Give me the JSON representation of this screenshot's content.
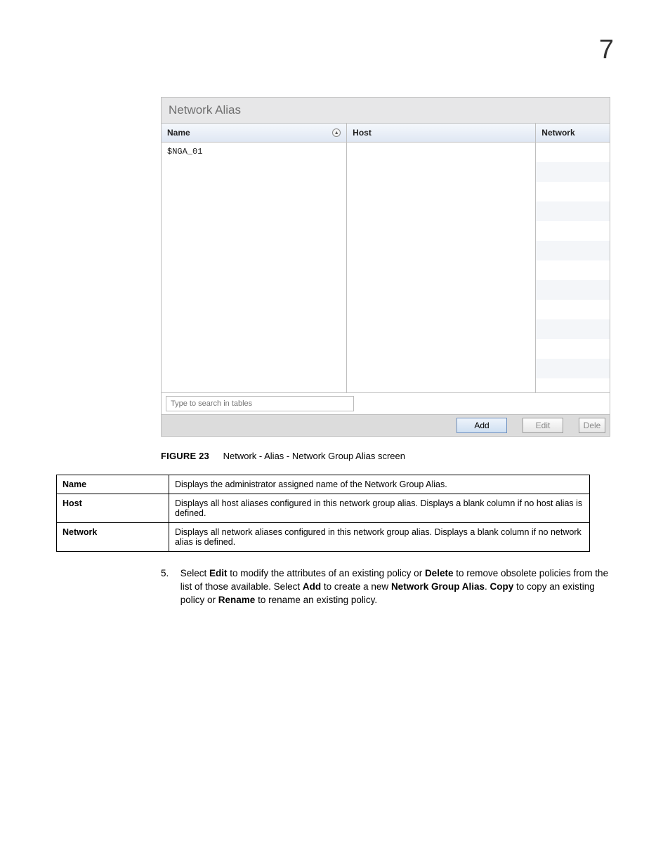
{
  "page_number": "7",
  "panel": {
    "title": "Network Alias",
    "columns": {
      "name": "Name",
      "host": "Host",
      "network": "Network"
    },
    "rows": [
      {
        "name": "$NGA_01",
        "host": "",
        "network": ""
      }
    ],
    "search_placeholder": "Type to search in tables",
    "buttons": {
      "add": "Add",
      "edit": "Edit",
      "delete": "Dele"
    }
  },
  "figure": {
    "label": "FIGURE 23",
    "caption": "Network - Alias - Network Group Alias screen"
  },
  "desc": {
    "rows": [
      {
        "term": "Name",
        "text": "Displays the administrator assigned name of the Network Group Alias."
      },
      {
        "term": "Host",
        "text": "Displays all host aliases configured in this network group alias. Displays a blank column if no host alias is defined."
      },
      {
        "term": "Network",
        "text": "Displays all network aliases configured in this network group alias. Displays a blank column if no network alias is defined."
      }
    ]
  },
  "step": {
    "num": "5.",
    "pre": "Select ",
    "edit": "Edit",
    "t1": " to modify the attributes of an existing policy or ",
    "delete": "Delete",
    "t2": " to remove obsolete policies from the list of those available. Select ",
    "add": "Add",
    "t3": " to create a new ",
    "nga": "Network Group Alias",
    "t4": ". ",
    "copy": "Copy",
    "t5": " to copy an existing policy or ",
    "rename": "Rename",
    "t6": " to rename an existing policy."
  }
}
